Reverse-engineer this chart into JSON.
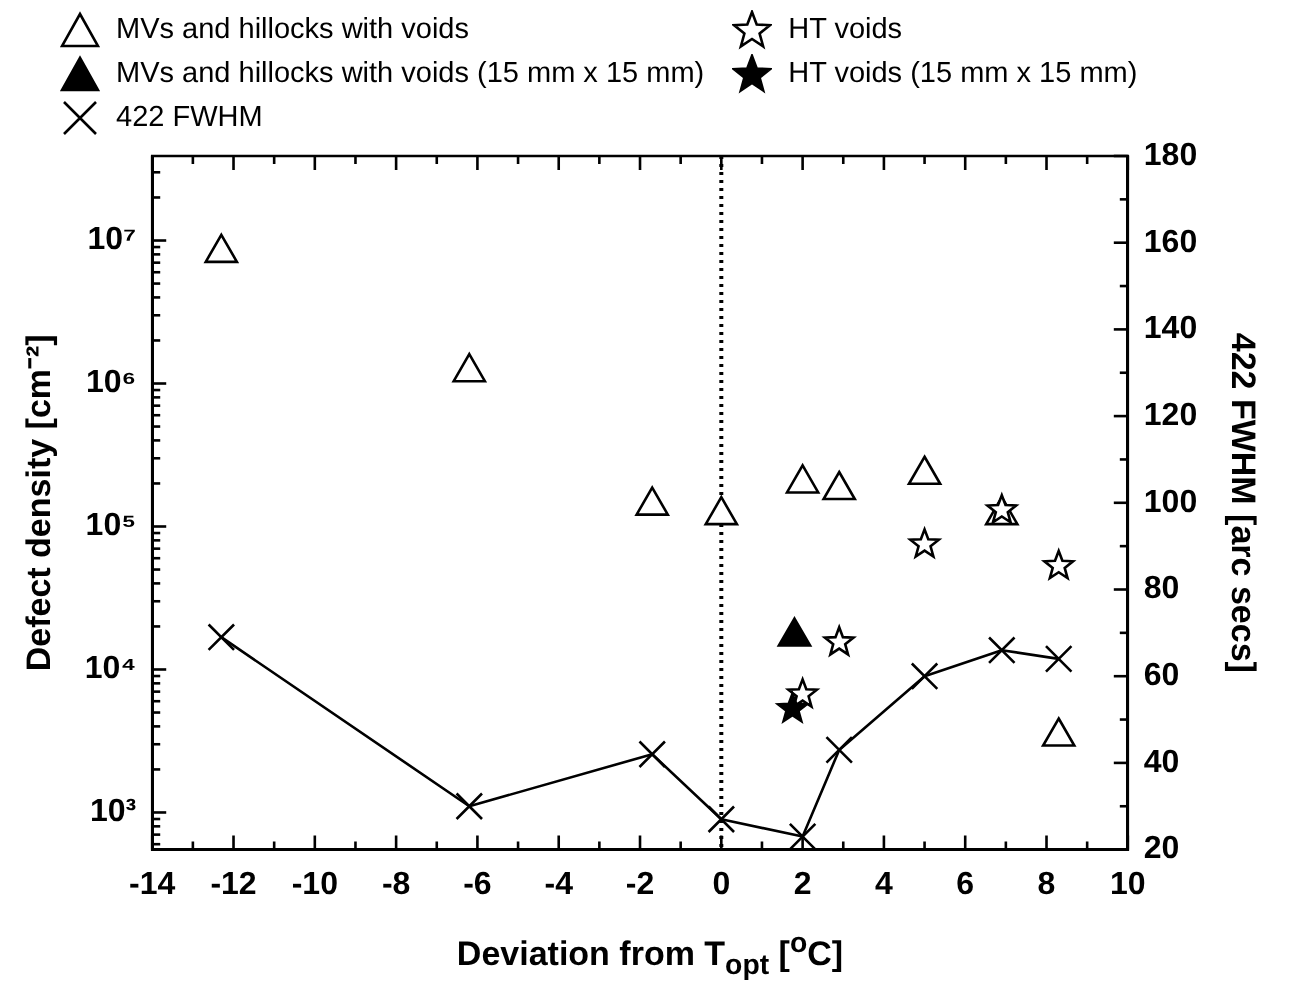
{
  "chart_data": {
    "type": "scatter",
    "xlabel": "Deviation from T$_{opt}$ [$^{o}$C]",
    "ylabel": "Defect density [cm⁻²]",
    "y2label": "422 FWHM [arc secs]",
    "xlim": [
      -14,
      10
    ],
    "xticks": [
      -14,
      {
        "value": -13,
        "label": null
      },
      -12,
      {
        "value": -11,
        "label": null
      },
      -10,
      {
        "value": -9,
        "label": null
      },
      -8,
      {
        "value": -7,
        "label": null
      },
      -6,
      {
        "value": -5,
        "label": null
      },
      -4,
      {
        "value": -3,
        "label": null
      },
      -2,
      {
        "value": -1,
        "label": null
      },
      0,
      {
        "value": 1,
        "label": null
      },
      2,
      {
        "value": 3,
        "label": null
      },
      4,
      {
        "value": 5,
        "label": null
      },
      6,
      {
        "value": 7,
        "label": null
      },
      8,
      {
        "value": 9,
        "label": null
      },
      10
    ],
    "log": "y",
    "ylim": [
      550,
      39000000
    ],
    "yticks": [
      {
        "value": 600,
        "label": null
      },
      {
        "value": 700,
        "label": null
      },
      {
        "value": 800,
        "label": null
      },
      {
        "value": 900,
        "label": null
      },
      {
        "value": 1000,
        "label": "10³"
      },
      {
        "value": 2000,
        "label": null
      },
      {
        "value": 3000,
        "label": null
      },
      {
        "value": 4000,
        "label": null
      },
      {
        "value": 5000,
        "label": null
      },
      {
        "value": 6000,
        "label": null
      },
      {
        "value": 7000,
        "label": null
      },
      {
        "value": 8000,
        "label": null
      },
      {
        "value": 9000,
        "label": null
      },
      {
        "value": 10000,
        "label": "10⁴"
      },
      {
        "value": 20000,
        "label": null
      },
      {
        "value": 30000,
        "label": null
      },
      {
        "value": 40000,
        "label": null
      },
      {
        "value": 50000,
        "label": null
      },
      {
        "value": 60000,
        "label": null
      },
      {
        "value": 70000,
        "label": null
      },
      {
        "value": 80000,
        "label": null
      },
      {
        "value": 90000,
        "label": null
      },
      {
        "value": 100000,
        "label": "10⁵"
      },
      {
        "value": 200000,
        "label": null
      },
      {
        "value": 300000,
        "label": null
      },
      {
        "value": 400000,
        "label": null
      },
      {
        "value": 500000,
        "label": null
      },
      {
        "value": 600000,
        "label": null
      },
      {
        "value": 700000,
        "label": null
      },
      {
        "value": 800000,
        "label": null
      },
      {
        "value": 900000,
        "label": null
      },
      {
        "value": 1000000,
        "label": "10⁶"
      },
      {
        "value": 2000000,
        "label": null
      },
      {
        "value": 3000000,
        "label": null
      },
      {
        "value": 4000000,
        "label": null
      },
      {
        "value": 5000000,
        "label": null
      },
      {
        "value": 6000000,
        "label": null
      },
      {
        "value": 7000000,
        "label": null
      },
      {
        "value": 8000000,
        "label": null
      },
      {
        "value": 9000000,
        "label": null
      },
      {
        "value": 10000000,
        "label": "10⁷"
      },
      {
        "value": 20000000,
        "label": null
      },
      {
        "value": 30000000,
        "label": null
      }
    ],
    "y2lim": [
      20,
      180
    ],
    "y2ticks": [
      20,
      {
        "value": 30,
        "label": null
      },
      40,
      {
        "value": 50,
        "label": null
      },
      60,
      {
        "value": 70,
        "label": null
      },
      80,
      {
        "value": 90,
        "label": null
      },
      100,
      {
        "value": 110,
        "label": null
      },
      120,
      {
        "value": 130,
        "label": null
      },
      140,
      {
        "value": 150,
        "label": null
      },
      160,
      {
        "value": 170,
        "label": null
      },
      180
    ],
    "grid": false,
    "legend": "top",
    "ref_lines": [
      {
        "axis": "x",
        "value": 0,
        "color": "#000000",
        "line_style": "dotted"
      }
    ],
    "series": [
      {
        "name": "MVs and hillocks with voids",
        "color": "#000000",
        "marker": "triangle",
        "x": [
          -12.3,
          -6.2,
          -1.7,
          0,
          2.0,
          2.9,
          5.0,
          6.9,
          8.3
        ],
        "values": [
          8200000,
          1200000,
          140000,
          120000,
          200000,
          180000,
          230000,
          120000,
          3400
        ]
      },
      {
        "name": "MVs and hillocks with voids (15 mm x 15 mm)",
        "color": "#000000",
        "marker": "triangle",
        "colors": [
          "#000000"
        ],
        "x": [
          1.8
        ],
        "values": [
          17000
        ]
      },
      {
        "name": "422 FWHM",
        "type": "line",
        "axis": "y2",
        "color": "#000000",
        "marker": "cross",
        "line_style": "solid",
        "x": [
          -12.3,
          -6.2,
          -1.7,
          0,
          2.0,
          2.9,
          5.0,
          6.9,
          8.3
        ],
        "values": [
          69,
          30,
          42,
          27,
          23,
          43,
          60,
          66,
          64
        ]
      },
      {
        "name": "HT voids",
        "color": "#000000",
        "marker": "star",
        "x": [
          2.0,
          2.9,
          5.0,
          6.9,
          8.3
        ],
        "values": [
          6700,
          15500,
          75000,
          130000,
          53000
        ]
      },
      {
        "name": "HT voids (15 mm x 15 mm)",
        "color": "#000000",
        "marker": "star",
        "colors": [
          "#000000"
        ],
        "x": [
          1.75
        ],
        "values": [
          5300
        ]
      }
    ]
  }
}
